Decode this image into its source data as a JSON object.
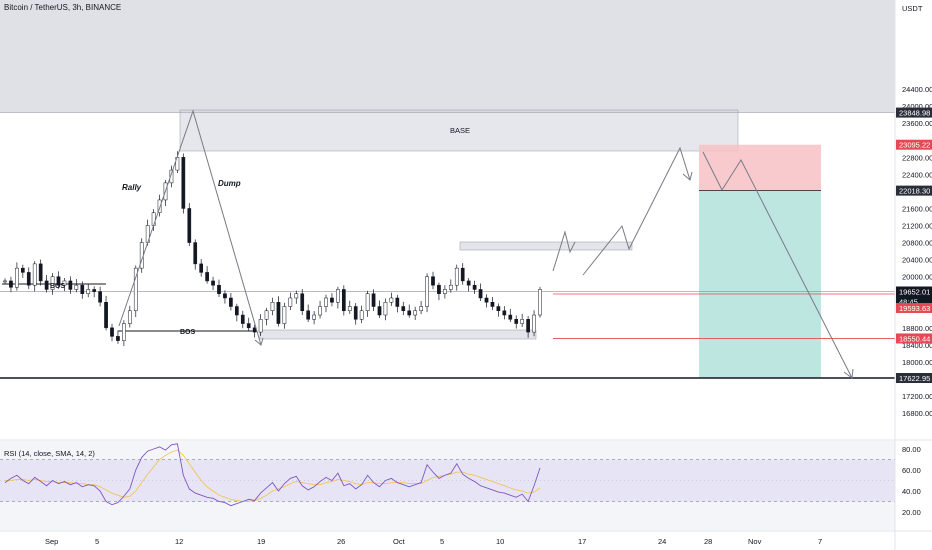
{
  "chart_data": {
    "type": "candlestick",
    "title": "Bitcoin / TetherUS, 3h, BINANCE",
    "y_unit": "USDT",
    "price_ticks": [
      24400,
      24000,
      23600,
      22800,
      22400,
      21600,
      21200,
      20800,
      20400,
      20000,
      19600,
      18800,
      18400,
      18000,
      17200,
      16800
    ],
    "x_ticks": [
      "Sep",
      "5",
      "12",
      "19",
      "26",
      "Oct",
      "5",
      "10",
      "17",
      "24",
      "28",
      "Nov",
      "7"
    ],
    "price_tags": [
      {
        "value": "23848.98",
        "color": "#2a2e39"
      },
      {
        "value": "23095.22",
        "color": "#e34a56"
      },
      {
        "value": "22018.30",
        "color": "#2a2e39"
      },
      {
        "value": "19652.01",
        "color": "#131722"
      },
      {
        "value": "48:45",
        "color": "#131722"
      },
      {
        "value": "19593.63",
        "color": "#e34a56"
      },
      {
        "value": "18550.44",
        "color": "#e34a56"
      },
      {
        "value": "17622.95",
        "color": "#2a2e39"
      }
    ],
    "annotations": [
      "BOS",
      "BOS",
      "Rally",
      "Dump",
      "BASE"
    ],
    "indicator": {
      "label": "RSI (14, close, SMA, 14, 2)",
      "ticks": [
        80,
        60,
        40,
        20
      ],
      "upper": 70,
      "lower": 30
    },
    "price_series": [
      19900,
      19750,
      20200,
      20100,
      19800,
      20300,
      19900,
      19700,
      20000,
      19800,
      19900,
      19700,
      19800,
      19600,
      19700,
      19650,
      19400,
      18800,
      18600,
      18500,
      18900,
      19200,
      20200,
      20800,
      21200,
      21500,
      21800,
      22200,
      22500,
      22800,
      21600,
      20800,
      20300,
      20100,
      19900,
      19800,
      19600,
      19500,
      19300,
      19100,
      18900,
      18800,
      18700,
      19000,
      19200,
      19400,
      18900,
      19300,
      19500,
      19600,
      19200,
      19000,
      19100,
      19300,
      19500,
      19400,
      19700,
      19200,
      19300,
      19000,
      19200,
      19600,
      19300,
      19100,
      19400,
      19500,
      19300,
      19200,
      19100,
      19200,
      19300,
      20000,
      19800,
      19600,
      19700,
      19800,
      20200,
      19900,
      19800,
      19700,
      19500,
      19400,
      19300,
      19200,
      19100,
      19000,
      18900,
      19000,
      18700,
      19100,
      19700
    ],
    "rsi_series": [
      48,
      52,
      55,
      50,
      47,
      53,
      49,
      45,
      50,
      47,
      49,
      46,
      48,
      44,
      46,
      45,
      40,
      30,
      27,
      29,
      35,
      42,
      60,
      72,
      78,
      80,
      82,
      79,
      84,
      85,
      55,
      42,
      38,
      36,
      34,
      33,
      30,
      29,
      26,
      28,
      30,
      32,
      31,
      38,
      43,
      48,
      40,
      47,
      52,
      54,
      45,
      41,
      44,
      49,
      53,
      50,
      57,
      45,
      47,
      42,
      46,
      55,
      48,
      44,
      50,
      52,
      48,
      46,
      44,
      46,
      48,
      65,
      58,
      52,
      55,
      57,
      66,
      56,
      52,
      49,
      45,
      43,
      41,
      39,
      38,
      36,
      34,
      37,
      30,
      45,
      62
    ],
    "rsi_ma_series": [
      50,
      50,
      51,
      51,
      50,
      51,
      50,
      49,
      49,
      48,
      48,
      48,
      47,
      47,
      46,
      46,
      44,
      41,
      38,
      36,
      34,
      35,
      40,
      48,
      56,
      63,
      70,
      74,
      77,
      79,
      74,
      66,
      58,
      50,
      44,
      40,
      36,
      34,
      32,
      31,
      30,
      30,
      31,
      33,
      36,
      40,
      42,
      44,
      47,
      49,
      48,
      47,
      46,
      46,
      48,
      49,
      51,
      50,
      49,
      47,
      46,
      48,
      48,
      47,
      47,
      48,
      48,
      48,
      47,
      47,
      47,
      50,
      53,
      54,
      55,
      56,
      58,
      58,
      56,
      55,
      53,
      51,
      49,
      47,
      45,
      43,
      41,
      40,
      38,
      39,
      43
    ],
    "markers": {
      "current_price": 19652.01,
      "stop_level": 23095.22,
      "entry_level": 22018.3,
      "target_level": 17622.95,
      "red_line_1": 19593.63,
      "red_line_2": 18550.44,
      "gray_band_top": 23848.98
    }
  }
}
